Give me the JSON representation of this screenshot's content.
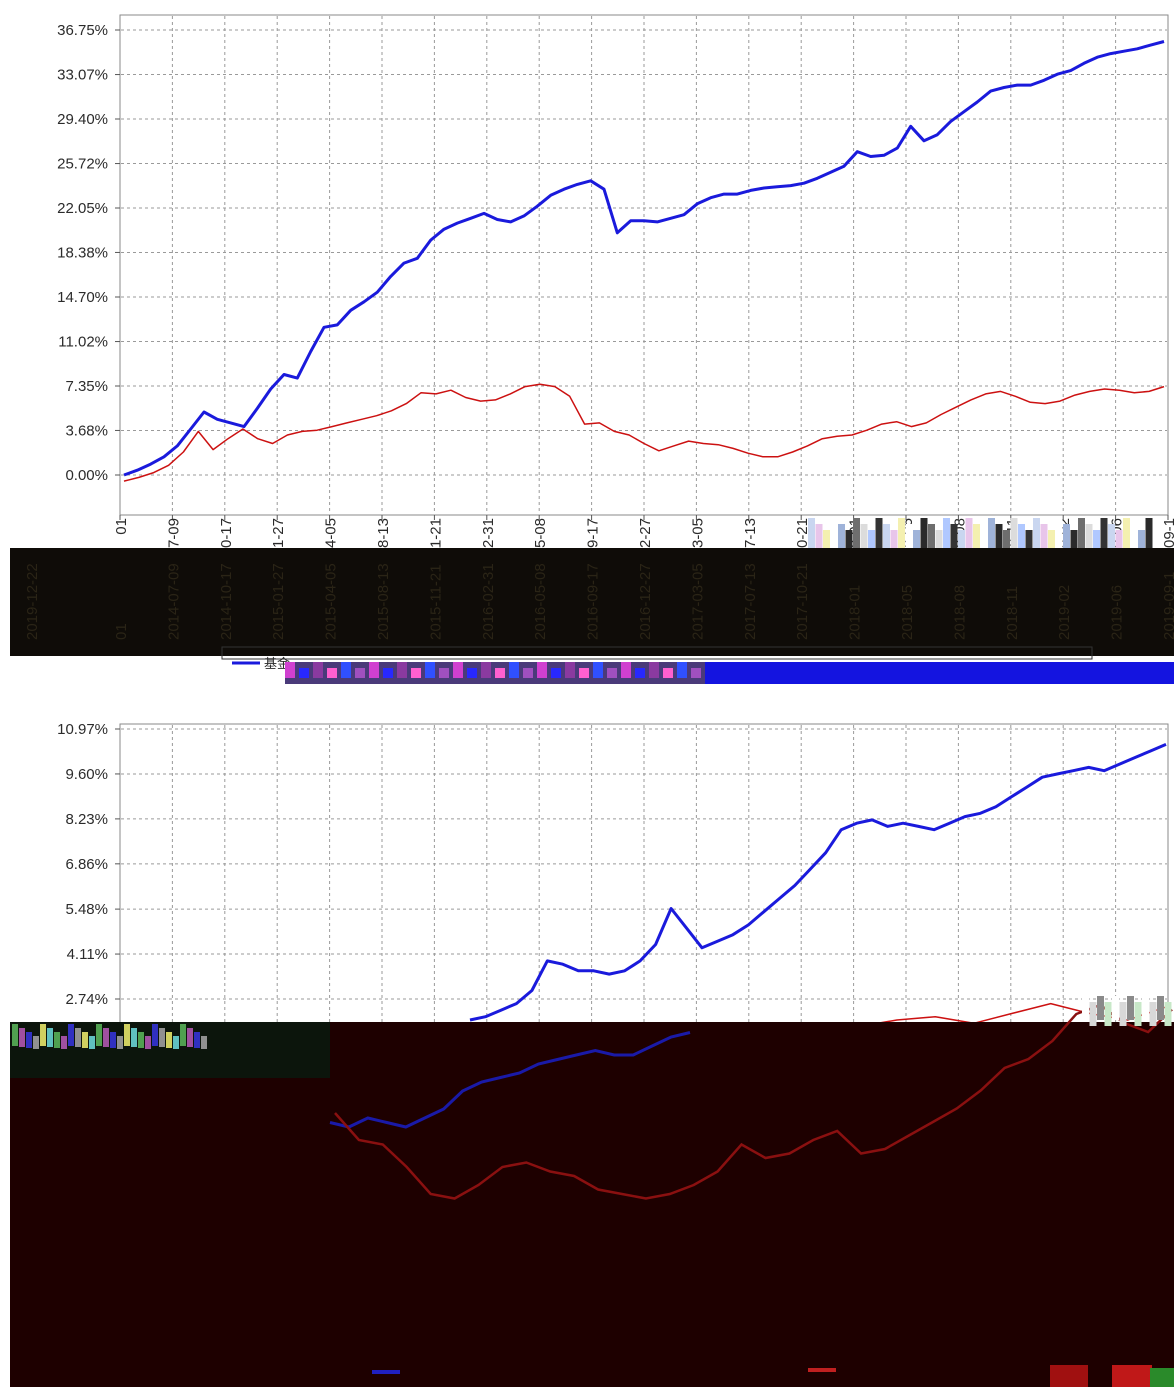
{
  "chart_data": [
    {
      "type": "line",
      "ytick_labels": [
        "36.75%",
        "33.07%",
        "29.40%",
        "25.72%",
        "22.05%",
        "18.38%",
        "14.70%",
        "11.02%",
        "7.35%",
        "3.68%",
        "0.00%"
      ],
      "ylim": [
        0,
        36.75
      ],
      "y_unit": "%",
      "grid": true,
      "xtick_labels": [
        "01",
        "2014-07-09",
        "2014-10-17",
        "2015-01-27",
        "2015-04-05",
        "2015-08-13",
        "2015-11-21",
        "2016-02-31",
        "2016-05-08",
        "2016-09-17",
        "2016-12-27",
        "2017-03-05",
        "2017-07-13",
        "2017-10-21",
        "2018-01",
        "2018-05",
        "2018-08",
        "2018-11",
        "2019-02",
        "2019-06",
        "2019-09-1"
      ],
      "extra_rotated_label": "2019-12-22",
      "series": [
        {
          "color": "#1a1adc",
          "values": [
            0.0,
            0.4,
            0.9,
            1.5,
            2.4,
            3.8,
            5.2,
            4.6,
            4.3,
            4.0,
            5.5,
            7.1,
            8.3,
            8.0,
            10.2,
            12.2,
            12.4,
            13.6,
            14.3,
            15.1,
            16.4,
            17.5,
            17.9,
            19.4,
            20.3,
            20.8,
            21.2,
            21.6,
            21.1,
            20.9,
            21.4,
            22.2,
            23.1,
            23.6,
            24.0,
            24.3,
            23.6,
            20.0,
            21.0,
            21.0,
            20.9,
            21.2,
            21.5,
            22.4,
            22.9,
            23.2,
            23.2,
            23.5,
            23.7,
            23.8,
            23.9,
            24.1,
            24.5,
            25.0,
            25.5,
            26.7,
            26.3,
            26.4,
            27.0,
            28.8,
            27.6,
            28.1,
            29.2,
            30.0,
            30.8,
            31.7,
            32.0,
            32.2,
            32.2,
            32.6,
            33.1,
            33.4,
            34.0,
            34.5,
            34.8,
            35.0,
            35.2,
            35.5,
            35.8
          ]
        },
        {
          "color": "#cc1111",
          "values": [
            -0.5,
            -0.2,
            0.2,
            0.8,
            1.9,
            3.6,
            2.1,
            3.0,
            3.8,
            3.0,
            2.6,
            3.3,
            3.6,
            3.7,
            4.0,
            4.3,
            4.6,
            4.9,
            5.3,
            5.9,
            6.8,
            6.7,
            7.0,
            6.4,
            6.1,
            6.2,
            6.7,
            7.3,
            7.5,
            7.3,
            6.5,
            4.2,
            4.3,
            3.6,
            3.3,
            2.6,
            2.0,
            2.4,
            2.8,
            2.6,
            2.5,
            2.2,
            1.8,
            1.5,
            1.5,
            1.9,
            2.4,
            3.0,
            3.2,
            3.3,
            3.7,
            4.2,
            4.4,
            4.0,
            4.3,
            5.0,
            5.6,
            6.2,
            6.7,
            6.9,
            6.5,
            6.0,
            5.9,
            6.1,
            6.6,
            6.9,
            7.1,
            7.0,
            6.8,
            6.9,
            7.3
          ]
        }
      ]
    },
    {
      "type": "line",
      "ytick_labels": [
        "10.97%",
        "9.60%",
        "8.23%",
        "6.86%",
        "5.48%",
        "4.11%",
        "2.74%"
      ],
      "y_unit": "%",
      "grid": true,
      "series": [
        {
          "color": "#1a1adc",
          "values": [
            2.1,
            2.2,
            2.4,
            2.6,
            3.0,
            3.9,
            3.8,
            3.6,
            3.6,
            3.5,
            3.6,
            3.9,
            4.4,
            5.5,
            4.9,
            4.3,
            4.5,
            4.7,
            5.0,
            5.4,
            5.8,
            6.2,
            6.7,
            7.2,
            7.9,
            8.1,
            8.2,
            8.0,
            8.1,
            8.0,
            7.9,
            8.1,
            8.3,
            8.4,
            8.6,
            8.9,
            9.2,
            9.5,
            9.6,
            9.7,
            9.8,
            9.7,
            9.9,
            10.1,
            10.3,
            10.5
          ],
          "lower_trace": [
            -0.5,
            -0.6,
            -0.4,
            -0.5,
            -0.6,
            -0.4,
            -0.2,
            0.2,
            0.4,
            0.5,
            0.6,
            0.8,
            0.9,
            1.0,
            1.1,
            1.0,
            1.0,
            1.2,
            1.4,
            1.5
          ]
        },
        {
          "color": "#cc1111",
          "values": [
            1.7,
            1.9,
            2.1,
            2.2,
            2.0,
            2.3,
            2.6,
            2.3,
            2.1,
            2.5
          ],
          "lower_trace": [
            -0.4,
            -1.0,
            -1.1,
            -1.6,
            -2.2,
            -2.3,
            -2.0,
            -1.6,
            -1.5,
            -1.7,
            -1.8,
            -2.1,
            -2.2,
            -2.3,
            -2.2,
            -2.0,
            -1.7,
            -1.1,
            -1.4,
            -1.3,
            -1.0,
            -0.8,
            -1.3,
            -1.2,
            -0.9,
            -0.6,
            -0.3,
            0.1,
            0.6,
            0.8,
            1.2,
            1.8,
            2.0,
            1.6,
            1.4,
            1.9
          ]
        }
      ]
    }
  ],
  "legend": {
    "first_label": "基金"
  }
}
